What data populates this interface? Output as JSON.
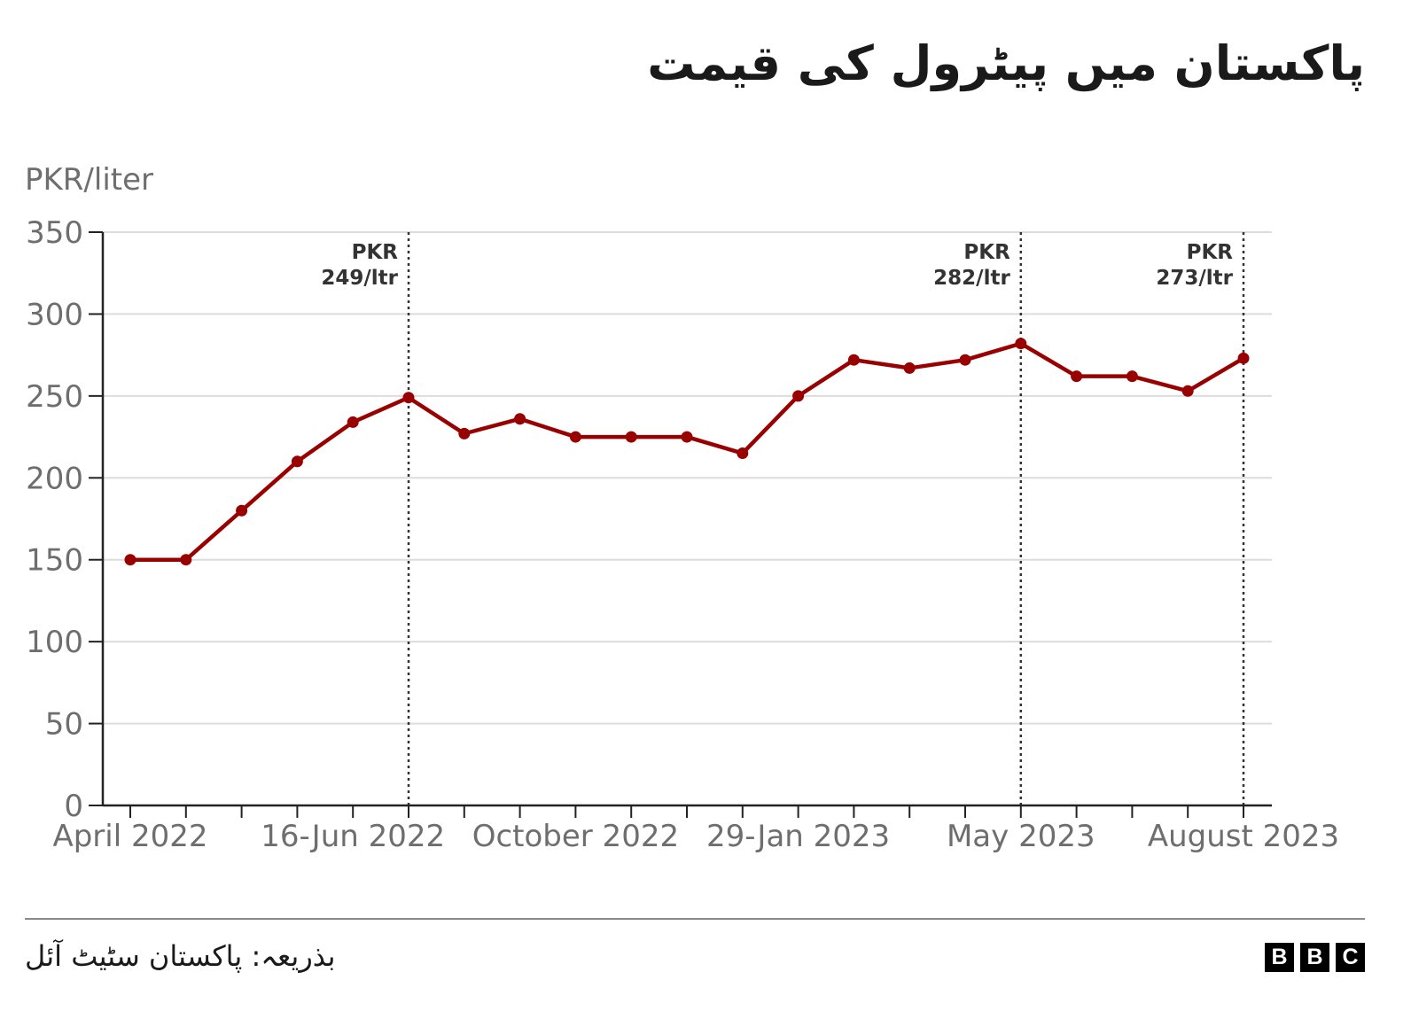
{
  "title": "پاکستان میں پیٹرول کی قیمت",
  "source": "بذریعہ: پاکستان سٹیٹ آئل",
  "logo": [
    "B",
    "B",
    "C"
  ],
  "colors": {
    "line": "#990000",
    "grid": "#dcdcdc",
    "axis": "#222222",
    "tick_label": "#6e6e6e",
    "annotation": "#333333"
  },
  "chart_data": {
    "type": "line",
    "ylabel": "PKR/liter",
    "ylim": [
      0,
      350
    ],
    "yticks": [
      0,
      50,
      100,
      150,
      200,
      250,
      300,
      350
    ],
    "grid": "horizontal",
    "x_labels": [
      {
        "index": 0,
        "label": "April 2022"
      },
      {
        "index": 4,
        "label": "16-Jun 2022"
      },
      {
        "index": 8,
        "label": "October 2022"
      },
      {
        "index": 12,
        "label": "29-Jan 2023"
      },
      {
        "index": 16,
        "label": "May 2023"
      },
      {
        "index": 20,
        "label": "August 2023"
      }
    ],
    "series": [
      {
        "values": [
          150,
          150,
          180,
          210,
          234,
          249,
          227,
          236,
          225,
          225,
          225,
          215,
          250,
          272,
          267,
          272,
          282,
          262,
          262,
          253,
          273
        ]
      }
    ],
    "annotations": [
      {
        "index": 5,
        "line1": "PKR",
        "line2": "249/ltr"
      },
      {
        "index": 16,
        "line1": "PKR",
        "line2": "282/ltr"
      },
      {
        "index": 20,
        "line1": "PKR",
        "line2": "273/ltr"
      }
    ]
  }
}
